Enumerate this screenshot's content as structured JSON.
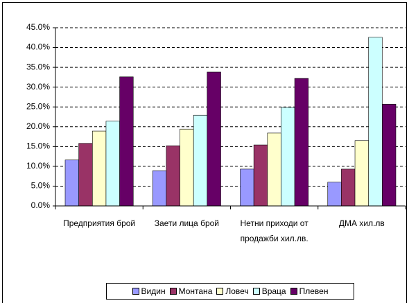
{
  "chart_data": {
    "type": "bar",
    "categories": [
      "Предприятия брой",
      "Заети лица брой",
      "Нетни приходи от продажби хил.лв.",
      "ДМА  хил.лв"
    ],
    "series": [
      {
        "name": "Видин",
        "color": "#9999ff",
        "values": [
          11.6,
          8.9,
          9.3,
          6.0
        ]
      },
      {
        "name": "Монтана",
        "color": "#993366",
        "values": [
          15.8,
          15.2,
          15.4,
          9.3
        ]
      },
      {
        "name": "Ловеч",
        "color": "#ffffcc",
        "values": [
          18.9,
          19.4,
          18.4,
          16.5
        ]
      },
      {
        "name": "Враца",
        "color": "#ccffff",
        "values": [
          21.4,
          22.9,
          24.9,
          42.6
        ]
      },
      {
        "name": "Плевен",
        "color": "#660066",
        "values": [
          32.6,
          33.8,
          32.2,
          25.7
        ]
      }
    ],
    "ylim": [
      0,
      45
    ],
    "yticks": [
      {
        "value": 0,
        "label": "0.0%"
      },
      {
        "value": 5,
        "label": "5.0%"
      },
      {
        "value": 10,
        "label": "10.0%"
      },
      {
        "value": 15,
        "label": "15.0%"
      },
      {
        "value": 20,
        "label": "20.0%"
      },
      {
        "value": 25,
        "label": "25.0%"
      },
      {
        "value": 30,
        "label": "30.0%"
      },
      {
        "value": 35,
        "label": "35.0%"
      },
      {
        "value": 40,
        "label": "40.0%"
      },
      {
        "value": 45,
        "label": "45.0%"
      }
    ],
    "grid": true,
    "legend": "bottom"
  }
}
